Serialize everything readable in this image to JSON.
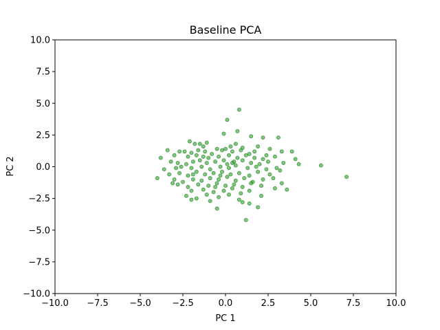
{
  "chart_data": {
    "type": "scatter",
    "title": "Baseline PCA",
    "xlabel": "PC 1",
    "ylabel": "PC 2",
    "xlim": [
      -10,
      10
    ],
    "ylim": [
      -10,
      10
    ],
    "xticks": [
      -10,
      -7.5,
      -5,
      -2.5,
      0,
      2.5,
      5,
      7.5,
      10
    ],
    "yticks": [
      -10,
      -7.5,
      -5,
      -2.5,
      0,
      2.5,
      5,
      7.5,
      10
    ],
    "xtick_labels": [
      "−10.0",
      "−7.5",
      "−5.0",
      "−2.5",
      "0.0",
      "2.5",
      "5.0",
      "7.5",
      "10.0"
    ],
    "ytick_labels": [
      "−10.0",
      "−7.5",
      "−5.0",
      "−2.5",
      "0.0",
      "2.5",
      "5.0",
      "7.5",
      "10.0"
    ],
    "grid": false,
    "point_color": "#2ca02c",
    "points": [
      [
        0.8,
        4.5
      ],
      [
        0.1,
        3.7
      ],
      [
        0.7,
        2.8
      ],
      [
        -0.1,
        2.6
      ],
      [
        3.1,
        2.3
      ],
      [
        -2.1,
        2.0
      ],
      [
        1.5,
        2.4
      ],
      [
        2.2,
        2.3
      ],
      [
        -1.8,
        1.8
      ],
      [
        -1.5,
        1.8
      ],
      [
        -1.3,
        1.6
      ],
      [
        -0.5,
        1.4
      ],
      [
        0.3,
        1.6
      ],
      [
        0.6,
        1.8
      ],
      [
        1.0,
        1.5
      ],
      [
        1.9,
        1.6
      ],
      [
        -3.4,
        1.3
      ],
      [
        -2.7,
        1.2
      ],
      [
        -2.4,
        1.2
      ],
      [
        -2.0,
        1.1
      ],
      [
        -1.6,
        1.3
      ],
      [
        -1.2,
        1.2
      ],
      [
        -0.8,
        1.0
      ],
      [
        -0.2,
        1.3
      ],
      [
        0.0,
        1.4
      ],
      [
        0.4,
        1.2
      ],
      [
        0.9,
        1.3
      ],
      [
        1.4,
        1.0
      ],
      [
        2.6,
        1.4
      ],
      [
        3.3,
        1.2
      ],
      [
        3.9,
        1.2
      ],
      [
        -3.8,
        0.7
      ],
      [
        -3.0,
        0.9
      ],
      [
        -2.2,
        0.8
      ],
      [
        -1.7,
        0.9
      ],
      [
        -1.3,
        0.8
      ],
      [
        -1.0,
        0.7
      ],
      [
        -0.4,
        0.8
      ],
      [
        0.2,
        0.9
      ],
      [
        0.7,
        0.7
      ],
      [
        1.2,
        0.9
      ],
      [
        1.7,
        0.7
      ],
      [
        2.2,
        0.6
      ],
      [
        2.9,
        0.8
      ],
      [
        -3.2,
        0.4
      ],
      [
        -2.8,
        0.3
      ],
      [
        -2.3,
        0.2
      ],
      [
        -1.9,
        0.4
      ],
      [
        -1.5,
        0.5
      ],
      [
        -1.1,
        0.3
      ],
      [
        -0.6,
        0.4
      ],
      [
        -0.1,
        0.5
      ],
      [
        0.5,
        0.4
      ],
      [
        1.0,
        0.5
      ],
      [
        1.5,
        0.3
      ],
      [
        2.0,
        0.2
      ],
      [
        2.5,
        0.4
      ],
      [
        3.4,
        0.3
      ],
      [
        4.1,
        0.6
      ],
      [
        -3.6,
        -0.2
      ],
      [
        -2.9,
        -0.1
      ],
      [
        -2.6,
        0.0
      ],
      [
        -2.0,
        -0.1
      ],
      [
        -1.4,
        0.0
      ],
      [
        -0.9,
        -0.2
      ],
      [
        -0.3,
        0.0
      ],
      [
        0.2,
        -0.1
      ],
      [
        0.6,
        0.1
      ],
      [
        1.3,
        -0.1
      ],
      [
        1.8,
        0.0
      ],
      [
        2.4,
        -0.2
      ],
      [
        3.0,
        -0.1
      ],
      [
        4.3,
        0.2
      ],
      [
        5.6,
        0.1
      ],
      [
        -4.0,
        -0.9
      ],
      [
        -3.3,
        -0.6
      ],
      [
        -2.7,
        -0.5
      ],
      [
        -2.2,
        -0.7
      ],
      [
        -1.7,
        -0.4
      ],
      [
        -1.2,
        -0.6
      ],
      [
        -0.7,
        -0.5
      ],
      [
        -0.2,
        -0.4
      ],
      [
        0.3,
        -0.6
      ],
      [
        0.8,
        -0.5
      ],
      [
        1.4,
        -0.7
      ],
      [
        1.9,
        -0.4
      ],
      [
        2.6,
        -0.6
      ],
      [
        3.2,
        -0.3
      ],
      [
        -3.0,
        -1.0
      ],
      [
        -2.5,
        -1.2
      ],
      [
        -1.9,
        -1.0
      ],
      [
        -1.4,
        -1.1
      ],
      [
        -0.9,
        -0.9
      ],
      [
        -0.4,
        -1.0
      ],
      [
        0.1,
        -0.8
      ],
      [
        0.6,
        -1.1
      ],
      [
        1.1,
        -0.9
      ],
      [
        1.6,
        -1.2
      ],
      [
        2.2,
        -1.0
      ],
      [
        2.8,
        -0.9
      ],
      [
        3.3,
        -1.3
      ],
      [
        -2.8,
        -1.4
      ],
      [
        -2.2,
        -1.6
      ],
      [
        -1.6,
        -1.4
      ],
      [
        -1.0,
        -1.5
      ],
      [
        -0.5,
        -1.3
      ],
      [
        0.0,
        -1.5
      ],
      [
        0.5,
        -1.4
      ],
      [
        1.0,
        -1.6
      ],
      [
        1.5,
        -1.3
      ],
      [
        2.1,
        -1.5
      ],
      [
        2.9,
        -1.7
      ],
      [
        -2.0,
        -1.9
      ],
      [
        -1.3,
        -1.8
      ],
      [
        -0.7,
        -2.0
      ],
      [
        -0.1,
        -1.9
      ],
      [
        0.4,
        -1.7
      ],
      [
        0.9,
        -2.1
      ],
      [
        1.4,
        -1.9
      ],
      [
        3.6,
        -1.8
      ],
      [
        -2.3,
        -2.3
      ],
      [
        -1.7,
        -2.5
      ],
      [
        -1.1,
        -2.2
      ],
      [
        -0.4,
        -2.4
      ],
      [
        0.2,
        -2.2
      ],
      [
        0.8,
        -2.6
      ],
      [
        2.1,
        -2.3
      ],
      [
        -2.0,
        -2.6
      ],
      [
        -0.9,
        -2.7
      ],
      [
        -0.5,
        -3.3
      ],
      [
        1.0,
        -2.8
      ],
      [
        1.4,
        -2.9
      ],
      [
        1.9,
        -3.2
      ],
      [
        1.2,
        -4.2
      ],
      [
        7.1,
        -0.8
      ],
      [
        -3.1,
        -1.3
      ],
      [
        -0.3,
        -0.7
      ],
      [
        0.4,
        0.3
      ],
      [
        1.7,
        1.2
      ],
      [
        -1.1,
        1.9
      ],
      [
        0.1,
        0.2
      ],
      [
        -0.6,
        -1.6
      ],
      [
        2.4,
        0.9
      ],
      [
        -1.9,
        -0.6
      ]
    ]
  }
}
